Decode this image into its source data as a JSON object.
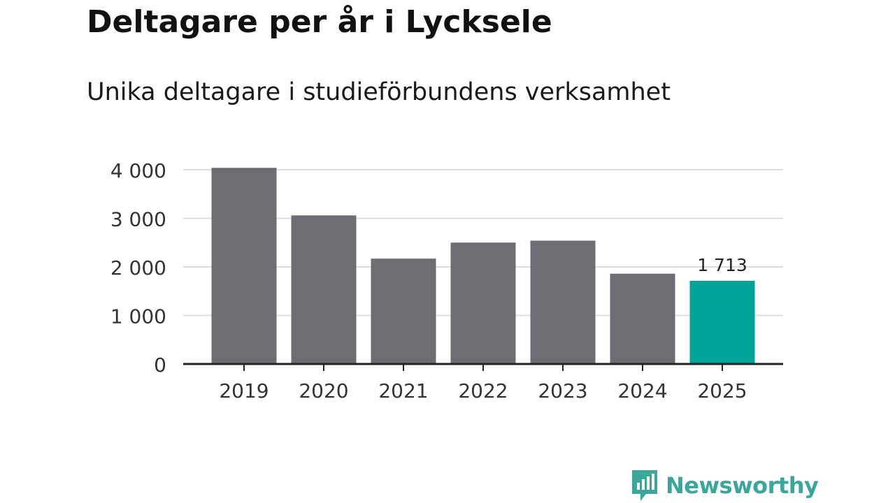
{
  "chart_data": {
    "type": "bar",
    "title": "Deltagare per år i Lycksele",
    "subtitle": "Unika deltagare i studieförbundens verksamhet",
    "categories": [
      "2019",
      "2020",
      "2021",
      "2022",
      "2023",
      "2024",
      "2025"
    ],
    "values": [
      4040,
      3060,
      2170,
      2500,
      2540,
      1860,
      1713
    ],
    "highlight_index": 6,
    "highlight_label": "1 713",
    "ylim": [
      0,
      4000
    ],
    "yticks": [
      0,
      1000,
      2000,
      3000,
      4000
    ],
    "ytick_labels": [
      "0",
      "1 000",
      "2 000",
      "3 000",
      "4 000"
    ],
    "xlabel": "",
    "ylabel": "",
    "grid": true,
    "colors": {
      "bar": "#6e6d73",
      "highlight": "#00a398",
      "grid": "#dddddd",
      "axis": "#222222",
      "text": "#333333"
    }
  },
  "brand": {
    "name": "Newsworthy",
    "color": "#3aa69c",
    "icon": "newsworthy-logo-icon"
  }
}
